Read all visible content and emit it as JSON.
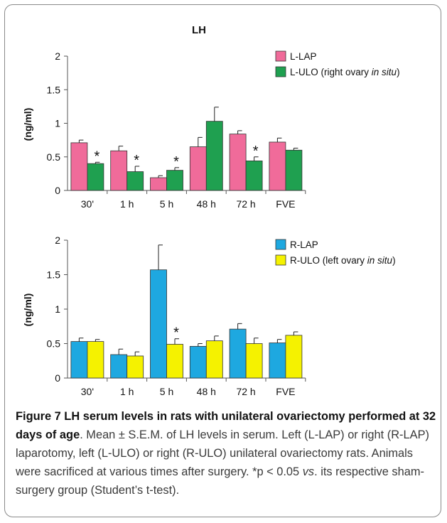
{
  "chart_data": [
    {
      "type": "bar",
      "title": "LH",
      "ylabel": "(ng/ml)",
      "xlabel": "",
      "ylim": [
        0,
        2
      ],
      "yticks": [
        "0",
        "0.5",
        "1",
        "1.5",
        "2"
      ],
      "categories": [
        "30'",
        "1 h",
        "5 h",
        "48 h",
        "72 h",
        "FVE"
      ],
      "series": [
        {
          "name": "L-LAP",
          "color": "#f06b9a",
          "values": [
            0.71,
            0.59,
            0.19,
            0.65,
            0.84,
            0.72
          ],
          "errors": [
            0.04,
            0.07,
            0.03,
            0.14,
            0.05,
            0.06
          ]
        },
        {
          "name": "L-ULO",
          "legend_text": "L-ULO (right ovary ",
          "legend_italic": "in situ",
          "legend_tail": ")",
          "color": "#1fa050",
          "values": [
            0.4,
            0.28,
            0.3,
            1.03,
            0.44,
            0.6
          ],
          "errors": [
            0.02,
            0.08,
            0.04,
            0.21,
            0.06,
            0.03
          ]
        }
      ],
      "annotations": [
        {
          "text": "*",
          "category": "30'",
          "series": "L-ULO"
        },
        {
          "text": "*",
          "category": "1 h",
          "series": "L-ULO"
        },
        {
          "text": "*",
          "category": "5 h",
          "series": "L-ULO"
        },
        {
          "text": "*",
          "category": "72 h",
          "series": "L-ULO"
        }
      ],
      "legend_position": "top-right"
    },
    {
      "type": "bar",
      "title": "",
      "ylabel": "(ng/ml)",
      "xlabel": "",
      "ylim": [
        0,
        2
      ],
      "yticks": [
        "0",
        "0.5",
        "1",
        "1.5",
        "2"
      ],
      "categories": [
        "30'",
        "1 h",
        "5 h",
        "48 h",
        "72 h",
        "FVE"
      ],
      "series": [
        {
          "name": "R-LAP",
          "color": "#1ea8e0",
          "values": [
            0.53,
            0.34,
            1.57,
            0.46,
            0.71,
            0.51
          ],
          "errors": [
            0.05,
            0.08,
            0.36,
            0.04,
            0.08,
            0.05
          ]
        },
        {
          "name": "R-ULO",
          "legend_text": "R-ULO (left ovary ",
          "legend_italic": "in situ",
          "legend_tail": ")",
          "color": "#f5f200",
          "values": [
            0.53,
            0.32,
            0.49,
            0.54,
            0.5,
            0.62
          ],
          "errors": [
            0.03,
            0.06,
            0.08,
            0.07,
            0.08,
            0.05
          ]
        }
      ],
      "annotations": [
        {
          "text": "*",
          "category": "5 h",
          "series": "R-ULO"
        }
      ],
      "legend_position": "top-right"
    }
  ],
  "caption": {
    "bold_label": "Figure 7 LH serum levels in rats with unilateral ovariectomy performed at 32 days of age",
    "text_1": ". Mean ± S.E.M. of LH levels in serum. Left (L-LAP) or right (R-LAP) laparotomy, left (L-ULO) or right (R-ULO) unilateral ovariectomy rats. Animals were sacrificed at various times after surgery. *p < 0.05 ",
    "italic_vs": "vs",
    "text_2": ". its respective sham-surgery group (Student’s t-test)."
  }
}
